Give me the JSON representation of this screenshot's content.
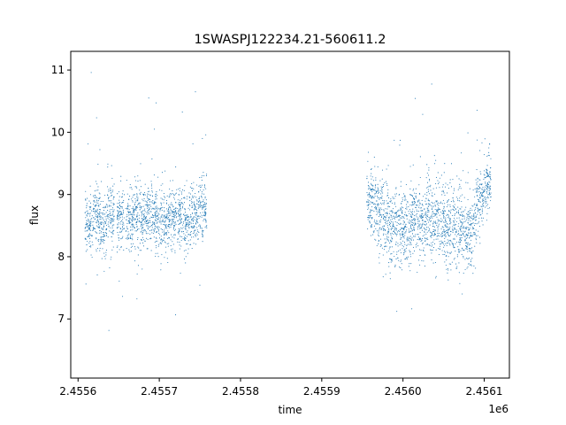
{
  "chart_data": {
    "type": "scatter",
    "title": "1SWASPJ122234.21-560611.2",
    "xlabel": "time",
    "ylabel": "flux",
    "x_offset_label": "1e6",
    "xlim": [
      2455591,
      2456131
    ],
    "ylim": [
      6.05,
      11.3
    ],
    "x_ticks": [
      2455600,
      2455700,
      2455800,
      2455900,
      2456000,
      2456100
    ],
    "x_tick_labels": [
      "2.4556",
      "2.4557",
      "2.4558",
      "2.4559",
      "2.4560",
      "2.4561"
    ],
    "y_ticks": [
      7,
      8,
      9,
      10,
      11
    ],
    "y_tick_labels": [
      "7",
      "8",
      "9",
      "10",
      "11"
    ],
    "grid": false,
    "marker_color": "#1f77b4",
    "series": [
      {
        "name": "",
        "x": [
          2455613.0,
          2455622.5,
          2455631.0,
          2455640.0,
          2455652.5,
          2455663.0,
          2455672.0,
          2455681.0,
          2455690.0,
          2455699.0,
          2455708.0,
          2455717.0,
          2455727.0,
          2455736.0,
          2455745.0,
          2455754.0,
          2455960.0,
          2455969.0,
          2455978.0,
          2455987.0,
          2455996.0,
          2456005.0,
          2456014.0,
          2456023.0,
          2456032.0,
          2456041.0,
          2456050.0,
          2456059.0,
          2456068.0,
          2456077.0,
          2456086.0,
          2456095.0,
          2456104.0
        ],
        "y": [
          8.55,
          8.65,
          8.5,
          8.7,
          8.6,
          8.55,
          8.65,
          8.6,
          8.7,
          8.6,
          8.55,
          8.65,
          8.6,
          8.55,
          8.7,
          8.75,
          8.9,
          8.7,
          8.6,
          8.5,
          8.55,
          8.45,
          8.6,
          8.55,
          8.7,
          8.6,
          8.55,
          8.5,
          8.45,
          8.35,
          8.5,
          8.9,
          9.2
        ],
        "y_spread": [
          0.45,
          0.4,
          0.4,
          0.45,
          0.45,
          0.4,
          0.5,
          0.45,
          0.45,
          0.5,
          0.45,
          0.4,
          0.5,
          0.45,
          0.45,
          0.4,
          0.55,
          0.55,
          0.6,
          0.55,
          0.55,
          0.55,
          0.5,
          0.55,
          0.6,
          0.6,
          0.6,
          0.6,
          0.55,
          0.55,
          0.55,
          0.5,
          0.45
        ]
      }
    ]
  }
}
